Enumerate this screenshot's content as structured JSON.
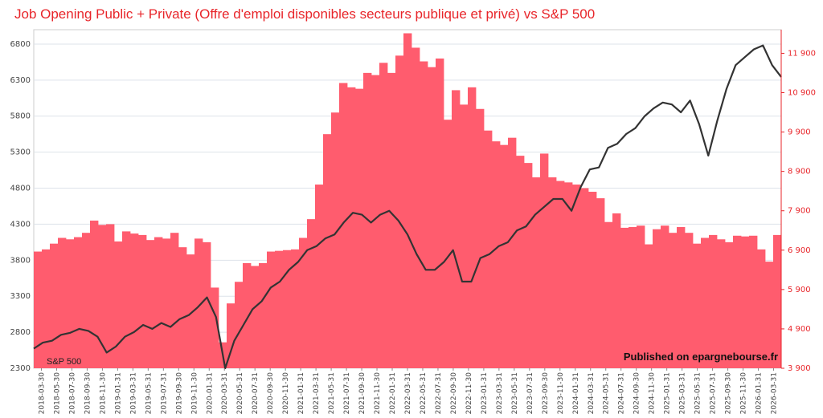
{
  "chart_data": {
    "type": "bar",
    "title": "Job Opening Public + Private (Offre d'emploi disponibles secteurs publique et privé) vs S&P 500",
    "credit": "Published on epargnebourse.fr",
    "grid": true,
    "left_axis": {
      "ylim": [
        2300,
        7000
      ],
      "ticks": [
        "2300",
        "2800",
        "3300",
        "3800",
        "4300",
        "4800",
        "5300",
        "5800",
        "6300",
        "6800"
      ]
    },
    "right_axis": {
      "ylim": [
        3900,
        12500
      ],
      "ticks": [
        "3 900",
        "4 900",
        "5 900",
        "6 900",
        "7 900",
        "8 900",
        "9 900",
        "10 900",
        "11 900"
      ]
    },
    "x_tick_labels": [
      "2018-03-30",
      "2018-05-30",
      "2018-07-30",
      "2018-09-30",
      "2018-11-30",
      "2019-01-31",
      "2019-03-31",
      "2019-05-31",
      "2019-07-31",
      "2019-09-30",
      "2019-11-30",
      "2020-01-31",
      "2020-03-31",
      "2020-05-31",
      "2020-07-31",
      "2020-09-30",
      "2020-11-30",
      "2021-01-31",
      "2021-03-31",
      "2021-05-31",
      "2021-07-31",
      "2021-09-30",
      "2021-11-30",
      "2022-01-31",
      "2022-03-31",
      "2022-05-31",
      "2022-07-31",
      "2022-09-30",
      "2022-11-30",
      "2023-01-31",
      "2023-03-31",
      "2023-05-31",
      "2023-07-31",
      "2023-09-30",
      "2023-11-30",
      "2024-01-31",
      "2024-03-31",
      "2024-05-31",
      "2024-07-31",
      "2024-09-30",
      "2024-11-30",
      "2025-01-31",
      "2025-03-31",
      "2025-05-31",
      "2025-07-31",
      "2025-09-30",
      "2025-11-30",
      "2026-01-31",
      "2026-03-31"
    ],
    "series": [
      {
        "name": "",
        "type": "bar",
        "axis": "left",
        "color": "#ff5c6e",
        "values": [
          3920,
          3950,
          4030,
          4110,
          4090,
          4120,
          4180,
          4350,
          4290,
          4300,
          4060,
          4200,
          4170,
          4150,
          4080,
          4120,
          4100,
          4180,
          3980,
          3880,
          4100,
          4050,
          3420,
          2660,
          3200,
          3500,
          3760,
          3720,
          3760,
          3920,
          3930,
          3940,
          3950,
          4110,
          4370,
          4850,
          5550,
          5850,
          6260,
          6200,
          6180,
          6400,
          6370,
          6540,
          6400,
          6640,
          6950,
          6750,
          6560,
          6480,
          6600,
          5750,
          6160,
          5960,
          6200,
          5900,
          5600,
          5450,
          5400,
          5500,
          5250,
          5150,
          4950,
          5280,
          4950,
          4900,
          4880,
          4850,
          4800,
          4750,
          4660,
          4330,
          4450,
          4250,
          4260,
          4280,
          4020,
          4230,
          4280,
          4180,
          4260,
          4180,
          4030,
          4110,
          4150,
          4090,
          4050,
          4140,
          4130,
          4140,
          3950,
          3780,
          4150
        ]
      },
      {
        "name": "S&P 500",
        "type": "line",
        "axis": "right",
        "color": "#333333",
        "x_range": [
          "2018-03-30",
          "2026-03-31"
        ],
        "values": [
          4400,
          4550,
          4600,
          4750,
          4800,
          4900,
          4850,
          4700,
          4300,
          4450,
          4700,
          4820,
          5000,
          4900,
          5050,
          4950,
          5150,
          5250,
          5450,
          5700,
          5200,
          3900,
          4600,
          5000,
          5400,
          5600,
          5950,
          6100,
          6400,
          6600,
          6900,
          7000,
          7200,
          7300,
          7600,
          7850,
          7800,
          7600,
          7800,
          7900,
          7650,
          7300,
          6800,
          6400,
          6400,
          6600,
          6900,
          6100,
          6100,
          6700,
          6800,
          7000,
          7100,
          7400,
          7500,
          7800,
          8000,
          8200,
          8200,
          7900,
          8500,
          8950,
          9000,
          9500,
          9600,
          9850,
          10000,
          10300,
          10500,
          10650,
          10600,
          10400,
          10700,
          10100,
          9300,
          10200,
          11000,
          11600,
          11800,
          12000,
          12100,
          11600,
          11300
        ]
      }
    ]
  }
}
